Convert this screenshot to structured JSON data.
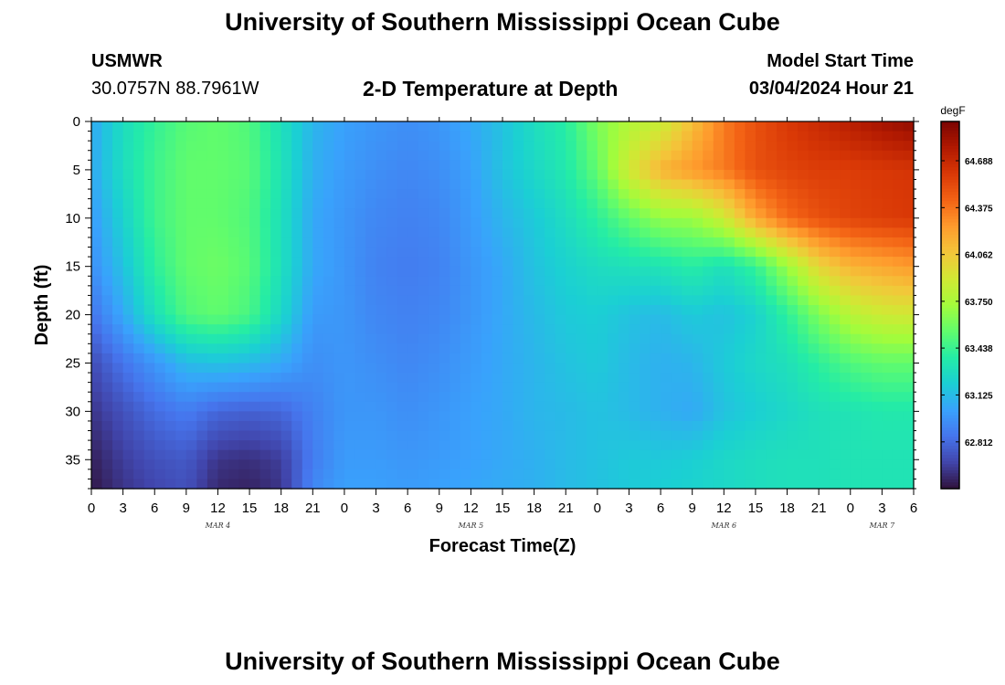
{
  "header": {
    "title": "University of Southern Mississippi Ocean Cube",
    "station": "USMWR",
    "coordinates": "30.0757N  88.7961W",
    "plot_title": "2-D Temperature at Depth",
    "model_start_label": "Model Start Time",
    "model_start_value": "03/04/2024 Hour 21"
  },
  "footer": {
    "title": "University of Southern Mississippi Ocean Cube"
  },
  "chart_data": {
    "type": "heatmap",
    "title": "2-D Temperature at Depth",
    "xlabel": "Forecast Time(Z)",
    "ylabel": "Depth (ft)",
    "x_tick_labels": [
      "0",
      "3",
      "6",
      "9",
      "12",
      "15",
      "18",
      "21",
      "0",
      "3",
      "6",
      "9",
      "12",
      "15",
      "18",
      "21",
      "0",
      "3",
      "6",
      "9",
      "12",
      "15",
      "18",
      "21",
      "0",
      "3",
      "6"
    ],
    "date_labels": [
      {
        "label": "MAR 4",
        "at_hour": 12
      },
      {
        "label": "MAR 5",
        "at_hour": 36
      },
      {
        "label": "MAR 6",
        "at_hour": 60
      },
      {
        "label": "MAR 7",
        "at_hour": 75
      }
    ],
    "x_range_hours": [
      0,
      78
    ],
    "y_ticks": [
      0,
      5,
      10,
      15,
      20,
      25,
      30,
      35
    ],
    "y_range": [
      0,
      38
    ],
    "colorbar": {
      "unit": "degF",
      "range": [
        62.5,
        64.95
      ],
      "ticks": [
        "64.688",
        "64.375",
        "64.062",
        "63.750",
        "63.438",
        "63.125",
        "62.812"
      ],
      "colors": [
        "#30123b",
        "#4145ab",
        "#4675ed",
        "#39a2fc",
        "#1bcfd4",
        "#24eca6",
        "#61fc6c",
        "#a4fc3b",
        "#d1e834",
        "#f3c63a",
        "#fe9b2d",
        "#f36315",
        "#d93806",
        "#b11901",
        "#7a0402"
      ]
    },
    "series": [
      {
        "depth_ft": [
          0,
          5,
          10,
          15,
          20,
          25,
          30,
          35,
          38
        ],
        "time_hours": [
          0,
          3,
          6,
          9,
          12,
          15,
          18,
          21,
          24,
          27,
          30,
          33,
          36,
          39,
          42,
          45,
          48,
          51,
          54,
          57,
          60,
          63,
          66,
          69,
          72,
          75,
          78
        ],
        "values_degF": [
          [
            63.05,
            63.28,
            63.42,
            63.52,
            63.55,
            63.5,
            63.3,
            63.1,
            63.02,
            62.98,
            62.95,
            62.98,
            63.05,
            63.15,
            63.28,
            63.38,
            63.62,
            63.78,
            63.85,
            64.1,
            64.35,
            64.5,
            64.6,
            64.68,
            64.75,
            64.82,
            64.88
          ],
          [
            63.05,
            63.28,
            63.45,
            63.55,
            63.55,
            63.52,
            63.32,
            63.08,
            63.0,
            62.95,
            62.92,
            62.95,
            63.02,
            63.15,
            63.25,
            63.35,
            63.55,
            63.9,
            64.15,
            64.25,
            64.35,
            64.5,
            64.55,
            64.58,
            64.58,
            64.6,
            64.62
          ],
          [
            63.0,
            63.22,
            63.45,
            63.55,
            63.55,
            63.5,
            63.3,
            63.05,
            62.98,
            62.92,
            62.9,
            62.92,
            63.0,
            63.1,
            63.18,
            63.28,
            63.4,
            63.55,
            63.68,
            63.7,
            63.88,
            64.2,
            64.4,
            64.5,
            64.55,
            64.58,
            64.6
          ],
          [
            62.95,
            63.15,
            63.4,
            63.55,
            63.58,
            63.52,
            63.3,
            63.05,
            62.98,
            62.9,
            62.88,
            62.9,
            62.98,
            63.05,
            63.15,
            63.22,
            63.28,
            63.3,
            63.32,
            63.38,
            63.3,
            63.42,
            63.7,
            64.0,
            64.15,
            64.2,
            64.25
          ],
          [
            62.85,
            63.05,
            63.3,
            63.5,
            63.55,
            63.48,
            63.25,
            63.0,
            62.98,
            62.92,
            62.9,
            62.92,
            62.98,
            63.05,
            63.12,
            63.18,
            63.2,
            63.15,
            63.12,
            63.18,
            63.15,
            63.22,
            63.4,
            63.62,
            63.8,
            63.88,
            63.9
          ],
          [
            62.7,
            62.85,
            62.98,
            63.12,
            63.15,
            63.12,
            63.05,
            62.95,
            62.98,
            62.95,
            62.92,
            62.95,
            63.0,
            63.05,
            63.1,
            63.15,
            63.18,
            63.12,
            63.08,
            63.1,
            63.18,
            63.25,
            63.3,
            63.4,
            63.5,
            63.55,
            63.55
          ],
          [
            62.62,
            62.72,
            62.82,
            62.88,
            62.8,
            62.78,
            62.8,
            62.9,
            62.98,
            62.98,
            62.95,
            62.98,
            63.02,
            63.05,
            63.1,
            63.12,
            63.15,
            63.12,
            63.08,
            63.05,
            63.15,
            63.2,
            63.25,
            63.3,
            63.32,
            63.35,
            63.35
          ],
          [
            62.55,
            62.65,
            62.72,
            62.75,
            62.62,
            62.6,
            62.65,
            62.88,
            63.0,
            63.0,
            62.98,
            63.0,
            63.02,
            63.05,
            63.08,
            63.12,
            63.15,
            63.18,
            63.18,
            63.2,
            63.25,
            63.28,
            63.3,
            63.3,
            63.32,
            63.32,
            63.32
          ],
          [
            62.52,
            62.62,
            62.68,
            62.72,
            62.58,
            62.56,
            62.62,
            62.92,
            63.02,
            63.02,
            63.0,
            63.02,
            63.04,
            63.06,
            63.08,
            63.12,
            63.15,
            63.18,
            63.2,
            63.22,
            63.25,
            63.28,
            63.3,
            63.3,
            63.32,
            63.32,
            63.32
          ]
        ]
      }
    ]
  }
}
